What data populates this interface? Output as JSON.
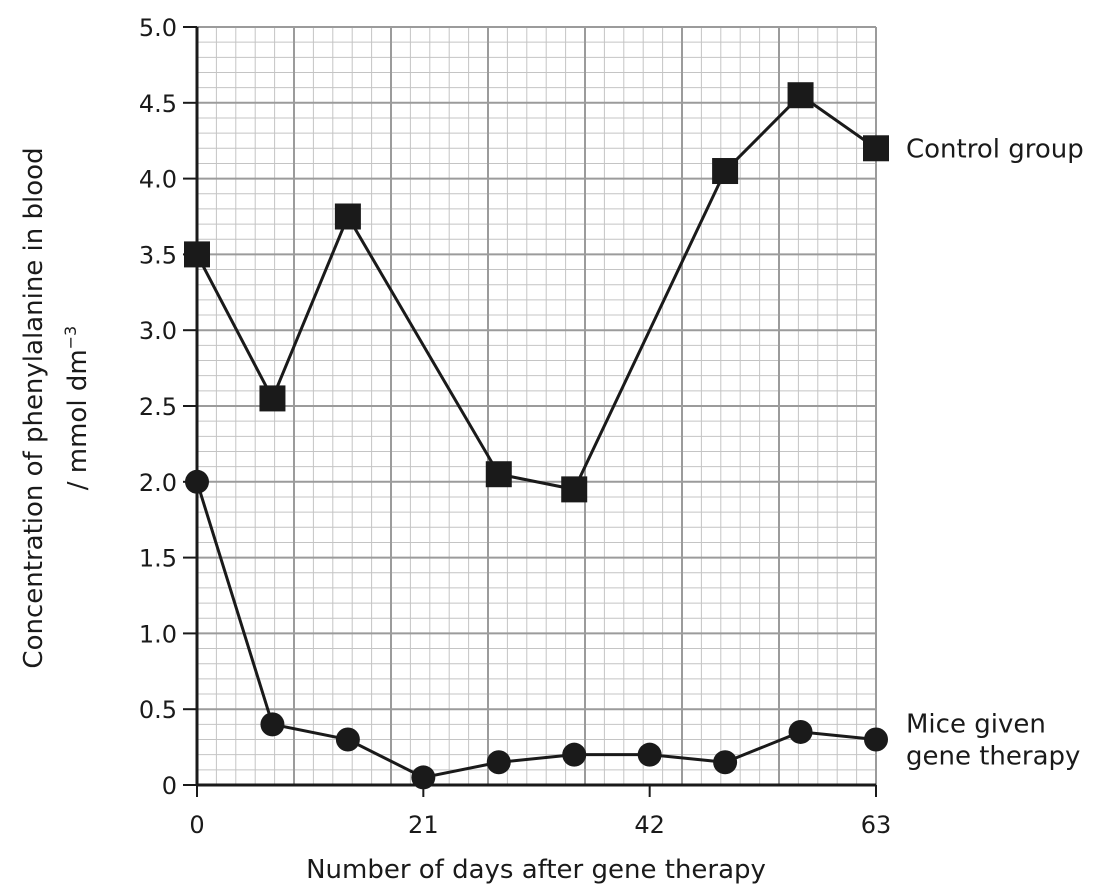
{
  "chart_data": {
    "type": "line",
    "xlabel": "Number of days after gene therapy",
    "ylabel_line1": "Concentration of phenylalanine in blood",
    "ylabel_line2": "/ mmol dm",
    "ylabel_superscript": "−3",
    "xlim": [
      0,
      63
    ],
    "ylim": [
      0,
      5.0
    ],
    "xticks": [
      0,
      21,
      42,
      63
    ],
    "xtick_labels": [
      "0",
      "21",
      "42",
      "63"
    ],
    "yticks": [
      0,
      0.5,
      1.0,
      1.5,
      2.0,
      2.5,
      3.0,
      3.5,
      4.0,
      4.5,
      5.0
    ],
    "ytick_labels": [
      "0",
      "0.5",
      "1.0",
      "1.5",
      "2.0",
      "2.5",
      "3.0",
      "3.5",
      "4.0",
      "4.5",
      "5.0"
    ],
    "grid": true,
    "series": [
      {
        "name": "Control group",
        "marker": "square",
        "x": [
          0,
          7,
          14,
          28,
          35,
          49,
          56,
          63
        ],
        "y": [
          3.5,
          2.55,
          3.75,
          2.05,
          1.95,
          4.05,
          4.55,
          4.2
        ]
      },
      {
        "name": "Mice given gene therapy",
        "name_lines": [
          "Mice given",
          "gene therapy"
        ],
        "marker": "circle",
        "x": [
          0,
          7,
          14,
          21,
          28,
          35,
          42,
          49,
          56,
          63
        ],
        "y": [
          2.0,
          0.4,
          0.3,
          0.05,
          0.15,
          0.2,
          0.2,
          0.15,
          0.35,
          0.3
        ]
      }
    ]
  }
}
